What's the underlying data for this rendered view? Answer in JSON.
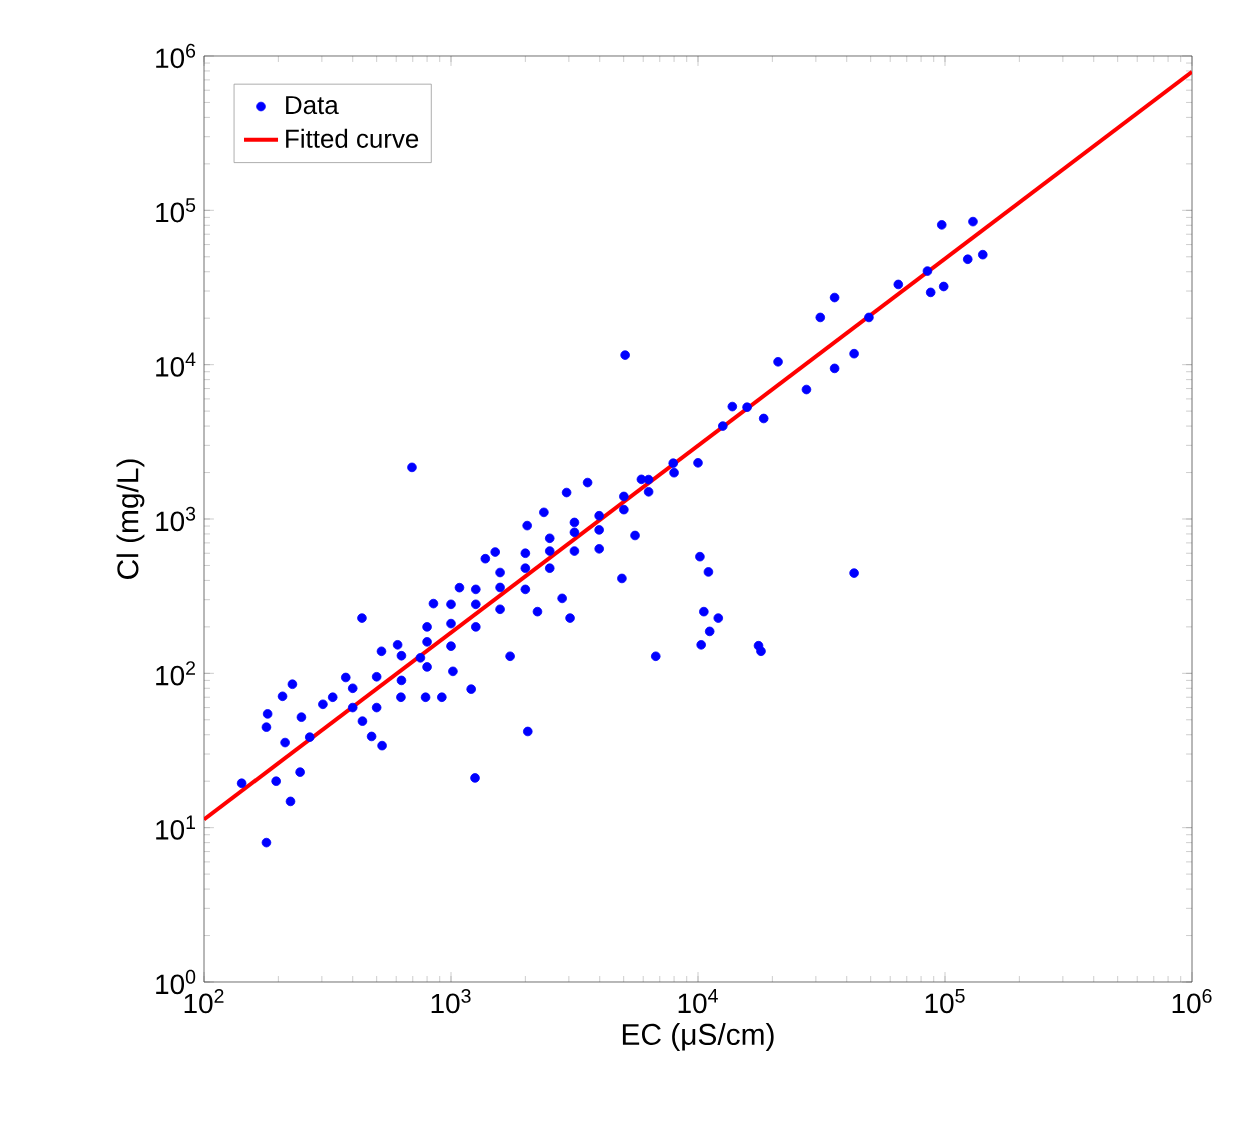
{
  "chart_data": {
    "type": "scatter",
    "xlabel": "EC (μS/cm)",
    "ylabel": "Cl (mg/L)",
    "log": "xy",
    "grid": false,
    "legend": "top left",
    "marker": "circle",
    "xlim": [
      100,
      1000000
    ],
    "ylim": [
      1,
      1000000
    ],
    "xticks": [
      {
        "value": 100,
        "label": "10$^{2}$"
      },
      {
        "value": 1000,
        "label": "10$^{3}$"
      },
      {
        "value": 10000,
        "label": "10$^{4}$"
      },
      {
        "value": 100000,
        "label": "10$^{5}$"
      },
      {
        "value": 1000000,
        "label": "10$^{6}$"
      }
    ],
    "yticks": [
      {
        "value": 1,
        "label": "10$^{0}$"
      },
      {
        "value": 10,
        "label": "10$^{1}$"
      },
      {
        "value": 100,
        "label": "10$^{2}$"
      },
      {
        "value": 1000,
        "label": "10$^{3}$"
      },
      {
        "value": 10000,
        "label": "10$^{4}$"
      },
      {
        "value": 100000,
        "label": "10$^{5}$"
      },
      {
        "value": 1000000,
        "label": "10$^{6}$"
      }
    ],
    "series": [
      {
        "name": "Data",
        "color": "#0000ff",
        "x": [
          179,
          142,
          196,
          224,
          245,
          181,
          179,
          208,
          228,
          248,
          213,
          268,
          303,
          332,
          375,
          436,
          438,
          477,
          526,
          523,
          608,
          695,
          627,
          789,
          752,
          918,
          849,
          1082,
          1207,
          1251,
          1018,
          1377,
          1510,
          1735,
          2046,
          2034,
          2377,
          2239,
          2938,
          2818,
          3573,
          3034,
          3981,
          4920,
          5070,
          6745,
          5560,
          5900,
          8000,
          10000,
          10180,
          11020,
          10560,
          12080,
          11150,
          10300,
          17580,
          17990,
          42850,
          13770,
          18450,
          21090,
          27480,
          31260,
          35730,
          35730,
          42850,
          49200,
          64700,
          87500,
          97000,
          98800,
          129800,
          123600,
          142200,
          84900,
          400,
          400,
          500,
          500,
          630,
          630,
          800,
          800,
          800,
          1000,
          1000,
          1000,
          1260,
          1260,
          1260,
          1580,
          1580,
          1580,
          2000,
          2000,
          2000,
          2510,
          2510,
          2510,
          3160,
          3160,
          3160,
          3980,
          3980,
          5010,
          5010,
          6310,
          6310,
          7940,
          12600,
          15800
        ],
        "values": [
          8.0,
          19.4,
          20,
          14.8,
          22.9,
          54.6,
          44.8,
          71,
          85,
          52,
          35.6,
          38.6,
          63,
          70,
          94,
          228,
          49,
          39,
          34,
          139,
          153,
          2160,
          70,
          70,
          126,
          70,
          283,
          359,
          79,
          21,
          103,
          553,
          611,
          129,
          42,
          906,
          1104,
          251,
          1484,
          306,
          1722,
          228,
          641,
          412,
          11530,
          129,
          782,
          1807,
          1995,
          2312,
          570,
          454,
          251,
          228,
          187,
          153,
          151,
          139,
          446,
          5350,
          4480,
          10440,
          6900,
          20230,
          27220,
          9460,
          11780,
          20230,
          33100,
          29400,
          80500,
          32100,
          84500,
          48200,
          51600,
          40400,
          60,
          80,
          95,
          60,
          130,
          90,
          160,
          110,
          200,
          210,
          150,
          280,
          280,
          200,
          350,
          360,
          260,
          450,
          480,
          350,
          600,
          620,
          480,
          750,
          820,
          620,
          950,
          1050,
          850,
          1400,
          1150,
          1800,
          1500,
          2300,
          4000,
          5300
        ]
      },
      {
        "name": "Fitted curve",
        "type": "line",
        "color": "#ff0000",
        "line_style": "solid",
        "marker": "none",
        "x": [
          100,
          1000000
        ],
        "values": [
          11.3,
          790000
        ]
      }
    ]
  }
}
